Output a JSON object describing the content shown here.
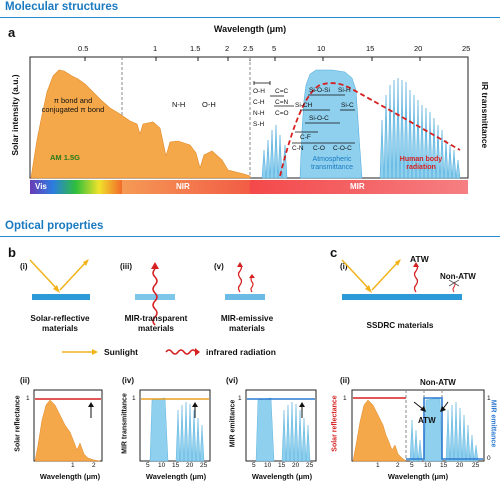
{
  "sections": {
    "top": "Molecular structures",
    "bottom": "Optical properties"
  },
  "panel_a": {
    "label": "a",
    "x_title": "Wavelength (μm)",
    "ticks": [
      "0.5",
      "1",
      "1.5",
      "2",
      "2.5",
      "5",
      "10",
      "15",
      "20",
      "25"
    ],
    "y_left": "Solar intensity (a.u.)",
    "y_right": "IR transmittance",
    "solar_name": "AM 1.5G",
    "atmos_name": "Atmospheric transmittance",
    "body_name": "Human body radiation",
    "vis_bonds": "π bond and conjugated π bond",
    "nir_bonds": [
      "N-H",
      "O-H"
    ],
    "bonds_col1": [
      "O-H",
      "C-H",
      "N-H",
      "S-H"
    ],
    "bonds_col2": [
      "C=C",
      "C=N",
      "C=O"
    ],
    "bonds_in_window": [
      "Si-O-Si",
      "Si-H",
      "Si-CH",
      "Si-C",
      "Si-O-C",
      "C-F",
      "C-N",
      "C-O",
      "C-O-C"
    ],
    "bands": [
      "Vis",
      "NIR",
      "MIR"
    ]
  },
  "panel_b": {
    "label": "b",
    "items": [
      {
        "roman": "(i)",
        "caption": "Solar-reflective materials"
      },
      {
        "roman": "(iii)",
        "caption": "MIR-transparent materials"
      },
      {
        "roman": "(v)",
        "caption": "MIR-emissive materials"
      }
    ],
    "legend": {
      "sunlight": "Sunlight",
      "infrared": "infrared radiation"
    },
    "plots": [
      {
        "roman": "(ii)",
        "ylabel": "Solar reflectance",
        "xlabel": "Wavelength (μm)",
        "ticks": [
          "1",
          "2"
        ],
        "ymax": "1"
      },
      {
        "roman": "(iv)",
        "ylabel": "MIR transmittance",
        "xlabel": "Wavelength (μm)",
        "ticks": [
          "5",
          "10",
          "15",
          "20",
          "25"
        ],
        "ymax": "1"
      },
      {
        "roman": "(vi)",
        "ylabel": "MIR emittance",
        "xlabel": "Wavelength (μm)",
        "ticks": [
          "5",
          "10",
          "15",
          "20",
          "25"
        ],
        "ymax": "1"
      }
    ]
  },
  "panel_c": {
    "label": "c",
    "roman1": "(i)",
    "atw": "ATW",
    "non_atw": "Non-ATW",
    "caption": "SSDRC materials",
    "plot": {
      "roman": "(ii)",
      "ylabel_left": "Solar reflectance",
      "ylabel_right": "MIR emittance",
      "xlabel": "Wavelength (μm)",
      "ticks": [
        "1",
        "2",
        "5",
        "10",
        "15",
        "20",
        "25"
      ],
      "ymax": "1",
      "zero": "0",
      "label_non_atw": "Non-ATW",
      "label_atw": "ATW"
    }
  },
  "colors": {
    "accent": "#1a7ac0",
    "solar": "#f5a849",
    "atmos": "#8fd0ef",
    "body": "#d62020",
    "substrate": "#2c9ad6",
    "sun_arrow": "#f2b31a"
  }
}
